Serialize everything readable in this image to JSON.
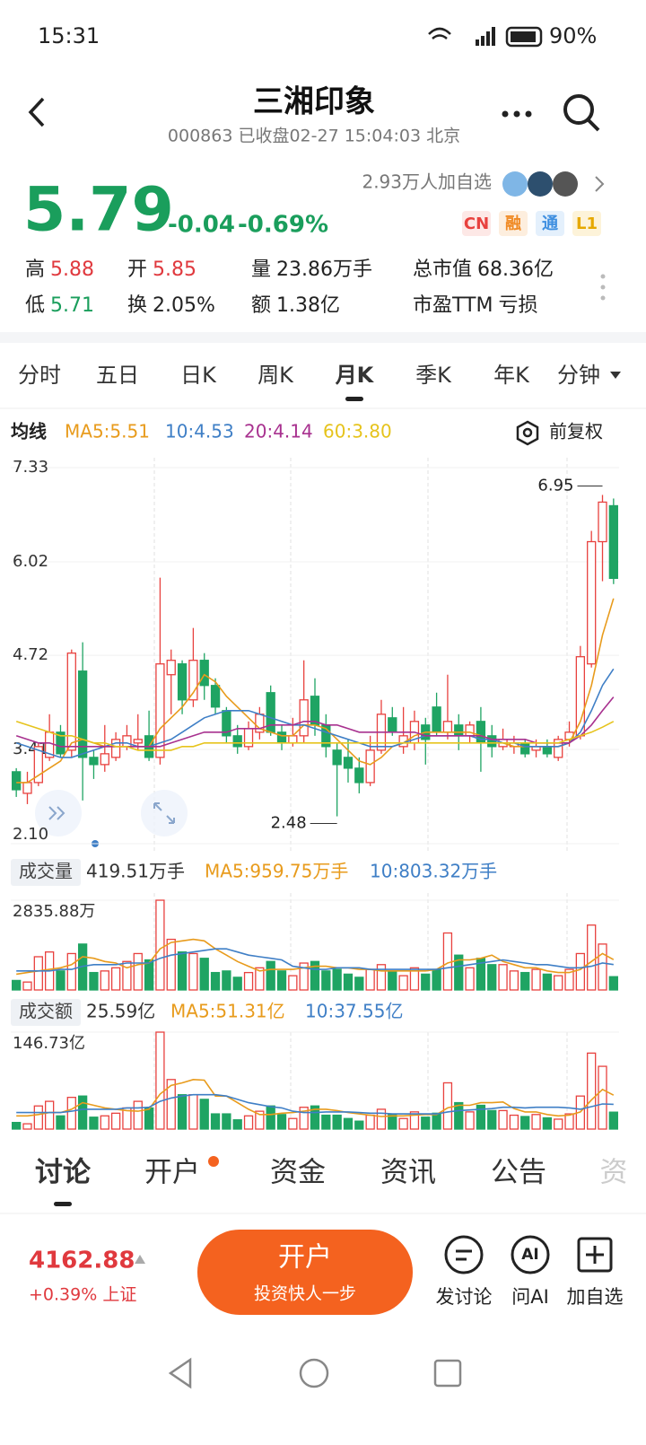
{
  "status": {
    "time": "15:31",
    "battery": "90%"
  },
  "header": {
    "title": "三湘印象",
    "subtitle": "000863 已收盘02-27 15:04:03 北京"
  },
  "quote": {
    "price": "5.79",
    "change": "-0.04",
    "pct": "-0.69%",
    "followers": "2.93万人加自选",
    "badges": [
      "CN",
      "融",
      "通",
      "L1"
    ],
    "stats": [
      {
        "label": "高",
        "value": "5.88",
        "color": "#e0393e"
      },
      {
        "label": "开",
        "value": "5.85",
        "color": "#e0393e"
      },
      {
        "label": "量",
        "value": "23.86万手",
        "color": "#222222"
      },
      {
        "label": "总市值",
        "value": "68.36亿",
        "color": "#222222"
      },
      {
        "label": "低",
        "value": "5.71",
        "color": "#1a9e5c"
      },
      {
        "label": "换",
        "value": "2.05%",
        "color": "#222222"
      },
      {
        "label": "额",
        "value": "1.38亿",
        "color": "#222222"
      },
      {
        "label": "市盈TTM",
        "value": "亏损",
        "color": "#222222"
      }
    ]
  },
  "periods": [
    "分时",
    "五日",
    "日K",
    "周K",
    "月K",
    "季K",
    "年K",
    "分钟"
  ],
  "chart_data": [
    {
      "type": "candlestick",
      "legend_title": "均线",
      "adjust": "前复权",
      "up_color": "#e8413e",
      "down_color": "#1fa463",
      "open": [
        3.1,
        2.8,
        2.95,
        3.3,
        3.65,
        3.4,
        4.5,
        3.3,
        3.2,
        3.3,
        3.45,
        3.5,
        3.6,
        3.3,
        4.45,
        4.6,
        4.1,
        4.65,
        4.3,
        3.95,
        3.6,
        3.45,
        3.65,
        4.2,
        3.65,
        3.5,
        3.6,
        4.15,
        3.75,
        3.4,
        3.3,
        3.15,
        2.95,
        3.4,
        3.85,
        3.45,
        3.5,
        3.75,
        4.0,
        3.65,
        3.75,
        3.6,
        3.8,
        3.6,
        3.45,
        3.45,
        3.5,
        3.4,
        3.45,
        3.3,
        3.55,
        3.6,
        4.6,
        6.3,
        6.8
      ],
      "high": [
        3.15,
        3.1,
        3.5,
        3.9,
        3.75,
        4.8,
        4.9,
        3.4,
        3.75,
        3.65,
        3.75,
        3.9,
        3.95,
        5.8,
        4.8,
        4.65,
        5.1,
        4.75,
        4.4,
        4.0,
        3.75,
        3.8,
        4.0,
        4.3,
        3.75,
        3.85,
        4.65,
        4.4,
        3.9,
        3.5,
        3.55,
        3.3,
        3.6,
        4.1,
        4.0,
        4.0,
        3.95,
        3.85,
        4.2,
        4.45,
        3.9,
        3.8,
        4.0,
        3.75,
        3.7,
        3.6,
        3.55,
        3.55,
        3.55,
        3.6,
        3.8,
        4.85,
        6.45,
        6.95,
        6.9
      ],
      "low": [
        2.75,
        2.65,
        2.9,
        3.25,
        3.3,
        3.3,
        2.7,
        3.0,
        3.1,
        3.25,
        3.4,
        3.4,
        3.25,
        3.2,
        3.9,
        3.9,
        4.0,
        4.1,
        3.9,
        3.5,
        3.35,
        3.4,
        3.55,
        3.6,
        3.4,
        3.45,
        3.5,
        3.6,
        3.3,
        2.48,
        2.95,
        2.8,
        2.9,
        3.35,
        3.6,
        3.35,
        3.4,
        3.2,
        3.6,
        3.55,
        3.4,
        3.5,
        3.1,
        3.3,
        3.4,
        3.35,
        3.3,
        3.3,
        3.3,
        3.25,
        3.45,
        3.55,
        4.55,
        5.75,
        5.71
      ],
      "close": [
        2.85,
        2.95,
        3.45,
        3.65,
        3.35,
        4.75,
        3.3,
        3.2,
        3.35,
        3.55,
        3.6,
        3.55,
        3.3,
        4.6,
        4.65,
        4.1,
        4.65,
        4.3,
        4.0,
        3.6,
        3.45,
        3.7,
        3.9,
        3.65,
        3.5,
        3.6,
        4.1,
        3.75,
        3.45,
        3.2,
        3.15,
        2.95,
        3.4,
        3.9,
        3.65,
        3.6,
        3.8,
        3.55,
        3.65,
        3.8,
        3.6,
        3.75,
        3.5,
        3.45,
        3.55,
        3.5,
        3.35,
        3.45,
        3.35,
        3.55,
        3.65,
        4.7,
        6.3,
        6.85,
        5.79
      ],
      "series": [
        {
          "name": "MA5:5.51",
          "color": "#e89b1c",
          "values": [
            2.95,
            2.95,
            3.05,
            3.15,
            3.25,
            3.5,
            3.55,
            3.5,
            3.45,
            3.45,
            3.45,
            3.45,
            3.45,
            3.7,
            3.85,
            4.0,
            4.2,
            4.45,
            4.35,
            4.15,
            4.0,
            3.85,
            3.7,
            3.65,
            3.6,
            3.6,
            3.75,
            3.75,
            3.7,
            3.55,
            3.4,
            3.25,
            3.2,
            3.3,
            3.45,
            3.5,
            3.6,
            3.65,
            3.65,
            3.65,
            3.65,
            3.65,
            3.6,
            3.55,
            3.5,
            3.45,
            3.45,
            3.45,
            3.45,
            3.45,
            3.5,
            3.8,
            4.3,
            5.0,
            5.51
          ]
        },
        {
          "name": "10:4.53",
          "color": "#3f7fc6",
          "values": [
            3.5,
            3.45,
            3.4,
            3.35,
            3.3,
            3.3,
            3.35,
            3.4,
            3.45,
            3.5,
            3.5,
            3.45,
            3.45,
            3.5,
            3.55,
            3.65,
            3.75,
            3.85,
            3.9,
            3.95,
            3.95,
            3.95,
            3.9,
            3.85,
            3.8,
            3.75,
            3.75,
            3.7,
            3.65,
            3.6,
            3.55,
            3.5,
            3.45,
            3.45,
            3.45,
            3.5,
            3.55,
            3.6,
            3.6,
            3.6,
            3.6,
            3.6,
            3.55,
            3.55,
            3.5,
            3.5,
            3.45,
            3.45,
            3.45,
            3.45,
            3.5,
            3.65,
            3.95,
            4.3,
            4.53
          ]
        },
        {
          "name": "20:4.14",
          "color": "#a8318f",
          "values": [
            3.6,
            3.55,
            3.5,
            3.5,
            3.45,
            3.45,
            3.45,
            3.45,
            3.45,
            3.45,
            3.45,
            3.45,
            3.45,
            3.45,
            3.5,
            3.55,
            3.6,
            3.65,
            3.65,
            3.65,
            3.7,
            3.7,
            3.7,
            3.75,
            3.75,
            3.75,
            3.8,
            3.8,
            3.75,
            3.75,
            3.7,
            3.65,
            3.65,
            3.65,
            3.65,
            3.65,
            3.65,
            3.6,
            3.6,
            3.6,
            3.6,
            3.6,
            3.6,
            3.55,
            3.55,
            3.55,
            3.55,
            3.5,
            3.5,
            3.5,
            3.5,
            3.6,
            3.75,
            3.95,
            4.14
          ]
        },
        {
          "name": "60:3.80",
          "color": "#e6c31c",
          "values": [
            3.8,
            3.75,
            3.7,
            3.65,
            3.6,
            3.6,
            3.55,
            3.5,
            3.5,
            3.45,
            3.45,
            3.4,
            3.4,
            3.4,
            3.4,
            3.45,
            3.45,
            3.5,
            3.5,
            3.5,
            3.5,
            3.5,
            3.5,
            3.5,
            3.5,
            3.5,
            3.5,
            3.5,
            3.5,
            3.5,
            3.5,
            3.5,
            3.5,
            3.5,
            3.5,
            3.5,
            3.5,
            3.5,
            3.5,
            3.5,
            3.5,
            3.5,
            3.5,
            3.5,
            3.5,
            3.5,
            3.5,
            3.5,
            3.5,
            3.5,
            3.55,
            3.6,
            3.65,
            3.72,
            3.8
          ]
        }
      ],
      "ylim": [
        2.1,
        7.33
      ],
      "yticks": [
        {
          "value": 2.1,
          "label": "2.10"
        },
        3.41,
        4.72,
        6.02,
        7.33
      ]
    },
    {
      "type": "bar",
      "title": "成交量",
      "current_label": "419.51万手",
      "values": [
        300,
        250,
        1050,
        1200,
        600,
        1150,
        1450,
        550,
        600,
        700,
        900,
        1150,
        950,
        2835.88,
        1600,
        1200,
        1150,
        1000,
        550,
        600,
        400,
        550,
        700,
        900,
        600,
        450,
        850,
        900,
        600,
        650,
        500,
        400,
        650,
        800,
        600,
        450,
        700,
        500,
        650,
        1800,
        1100,
        700,
        1000,
        800,
        800,
        600,
        550,
        650,
        500,
        450,
        650,
        1150,
        2050,
        1450,
        419.51
      ],
      "series": [
        {
          "name": "MA5:959.75万手",
          "color": "#e89b1c",
          "values": [
            500,
            550,
            600,
            650,
            700,
            800,
            1050,
            1000,
            900,
            850,
            700,
            800,
            850,
            1300,
            1500,
            1550,
            1600,
            1550,
            1300,
            1100,
            900,
            750,
            600,
            650,
            650,
            650,
            700,
            750,
            750,
            700,
            700,
            650,
            650,
            600,
            600,
            600,
            600,
            600,
            650,
            850,
            950,
            950,
            1000,
            1100,
            900,
            800,
            700,
            700,
            600,
            550,
            550,
            650,
            900,
            1150,
            959.75
          ]
        },
        {
          "name": "10:803.32万手",
          "color": "#3f7fc6",
          "values": [
            600,
            600,
            600,
            600,
            650,
            650,
            750,
            800,
            800,
            800,
            850,
            850,
            850,
            1000,
            1100,
            1150,
            1200,
            1250,
            1300,
            1300,
            1200,
            1100,
            1050,
            1000,
            950,
            750,
            700,
            650,
            650,
            700,
            700,
            700,
            650,
            650,
            650,
            650,
            650,
            650,
            650,
            700,
            750,
            800,
            850,
            900,
            950,
            900,
            850,
            800,
            800,
            750,
            700,
            700,
            750,
            850,
            803.32
          ]
        }
      ],
      "ylim": [
        0,
        2835.88
      ],
      "yticks": [
        {
          "value": 2835.88,
          "label": "2835.88万"
        }
      ]
    },
    {
      "type": "bar",
      "title": "成交额",
      "current_label": "25.59亿",
      "values": [
        10,
        8,
        35,
        42,
        20,
        48,
        50,
        18,
        20,
        24,
        32,
        42,
        32,
        146.73,
        75,
        52,
        52,
        45,
        23,
        23,
        14,
        20,
        27,
        35,
        22,
        16,
        33,
        35,
        21,
        21,
        16,
        12,
        21,
        30,
        22,
        16,
        26,
        18,
        24,
        70,
        40,
        26,
        36,
        28,
        28,
        21,
        19,
        22,
        17,
        15,
        23,
        50,
        115,
        95,
        25.59
      ],
      "series": [
        {
          "name": "MA5:51.31亿",
          "color": "#e89b1c",
          "values": [
            20,
            20,
            22,
            25,
            25,
            30,
            40,
            36,
            32,
            30,
            28,
            27,
            30,
            53,
            66,
            70,
            75,
            74,
            50,
            50,
            40,
            30,
            22,
            22,
            24,
            25,
            27,
            30,
            30,
            28,
            25,
            23,
            21,
            19,
            20,
            20,
            21,
            22,
            22,
            32,
            36,
            36,
            40,
            40,
            41,
            31,
            26,
            26,
            22,
            20,
            21,
            26,
            44,
            60,
            51.31
          ]
        },
        {
          "name": "10:37.55亿",
          "color": "#3f7fc6",
          "values": [
            25,
            25,
            25,
            25,
            25,
            27,
            30,
            30,
            30,
            30,
            32,
            32,
            33,
            42,
            47,
            50,
            52,
            52,
            52,
            50,
            45,
            40,
            37,
            34,
            32,
            27,
            25,
            25,
            26,
            26,
            26,
            25,
            24,
            24,
            23,
            23,
            23,
            23,
            23,
            26,
            28,
            29,
            30,
            31,
            33,
            33,
            32,
            33,
            33,
            33,
            32,
            30,
            34,
            38,
            37.55
          ]
        }
      ],
      "ylim": [
        0,
        146.73
      ],
      "yticks": [
        {
          "value": 146.73,
          "label": "146.73亿"
        }
      ]
    }
  ],
  "tabs": [
    "讨论",
    "开户",
    "资金",
    "资讯",
    "公告",
    "资"
  ],
  "footer": {
    "index_value": "4162.88",
    "index_change": "+0.39% 上证",
    "cta_title": "开户",
    "cta_sub": "投资快人一步",
    "actions": [
      "发讨论",
      "问AI",
      "加自选"
    ]
  }
}
